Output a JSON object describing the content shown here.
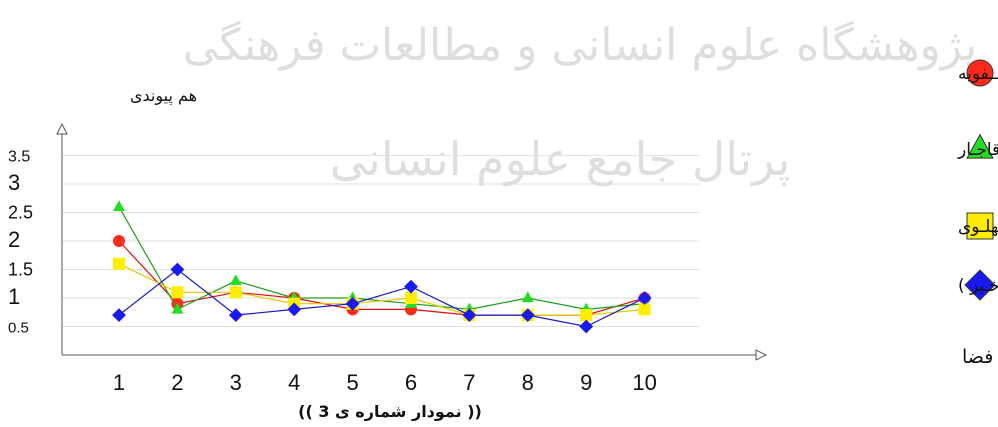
{
  "chart_data": {
    "type": "line",
    "title": "",
    "caption": "(( نمودار شماره ی 3 ))",
    "xlabel": "شماره فضا",
    "ylabel": "هم پیوندی",
    "categories": [
      1,
      2,
      3,
      4,
      5,
      6,
      7,
      8,
      9,
      10
    ],
    "yticks": [
      {
        "value": 0.5,
        "label": "0.5"
      },
      {
        "value": 1,
        "label": "1"
      },
      {
        "value": 1.5,
        "label": "1.5"
      },
      {
        "value": 2,
        "label": "2"
      },
      {
        "value": 2.5,
        "label": "2.5"
      },
      {
        "value": 3,
        "label": "3"
      },
      {
        "value": 3.5,
        "label": "3.5"
      }
    ],
    "ylim": [
      0,
      3.8
    ],
    "grid": true,
    "legend": "right",
    "series": [
      {
        "name": "تیمــوری- صــــفویه",
        "marker": "circle",
        "color": "#ff2a1a",
        "line_color": "#e01010",
        "values": [
          2.0,
          0.9,
          1.1,
          1.0,
          0.8,
          0.8,
          0.7,
          0.7,
          0.7,
          1.0
        ]
      },
      {
        "name": "قاجـار",
        "marker": "triangle",
        "color": "#22dd22",
        "line_color": "#1ca01c",
        "values": [
          2.6,
          0.8,
          1.3,
          1.0,
          1.0,
          0.9,
          0.8,
          1.0,
          0.8,
          0.9
        ]
      },
      {
        "name": "پهلـوی",
        "marker": "square",
        "color": "#ffee00",
        "line_color": "#e6c800",
        "values": [
          1.6,
          1.1,
          1.1,
          0.9,
          0.9,
          1.0,
          0.7,
          0.7,
          0.7,
          0.8
        ]
      },
      {
        "name": "امروزی (سـی سـال اخـیر )",
        "marker": "diamond",
        "color": "#1a1aee",
        "line_color": "#1a1acc",
        "values": [
          0.7,
          1.5,
          0.7,
          0.8,
          0.9,
          1.2,
          0.7,
          0.7,
          0.5,
          1.0
        ]
      }
    ]
  },
  "watermark": {
    "line1": "پژوهشگاه علوم انسانی و مطالعات فرهنگی",
    "line2": "پرتال جامع علوم انسانی"
  }
}
